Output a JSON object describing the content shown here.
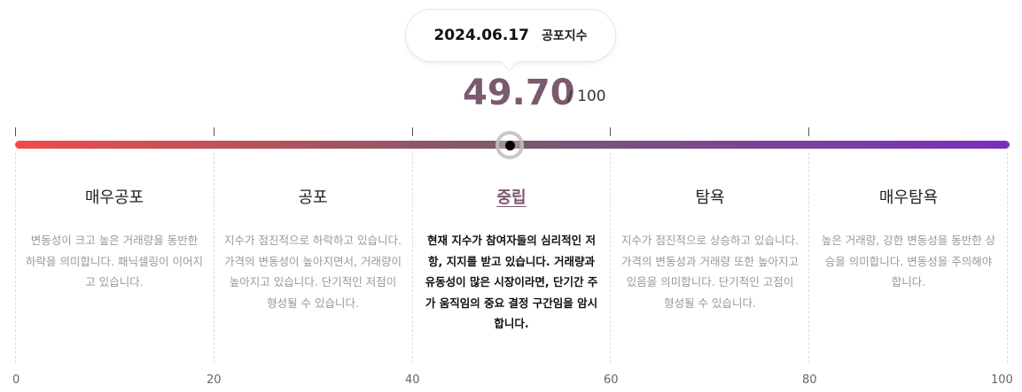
{
  "tooltip": {
    "date": "2024.06.17",
    "label": "공포지수"
  },
  "index": {
    "value": "49.70",
    "max": "/ 100",
    "fraction": 0.497
  },
  "colors": {
    "start": "#f04b4b",
    "mid": "#7a5a6e",
    "end": "#7b2fbe"
  },
  "zones": [
    {
      "title": "매우공포",
      "desc": "변동성이 크고 높은 거래량을 동반한 하락을 의미합니다. 패닉셀링이 이어지고 있습니다."
    },
    {
      "title": "공포",
      "desc": "지수가 점진적으로 하락하고 있습니다. 가격의 변동성이 높아지면서, 거래량이 높아지고 있습니다. 단기적인 저점이 형성될 수 있습니다."
    },
    {
      "title": "중립",
      "desc": "현재 지수가 참여자들의 심리적인 저항, 지지를 받고 있습니다. 거래량과 유동성이 많은 시장이라면, 단기간 주가 움직임의 중요 결정 구간임을 암시합니다.",
      "active": true
    },
    {
      "title": "탐욕",
      "desc": "지수가 점진적으로 상승하고 있습니다. 가격의 변동성과 거래량 또한 높아지고 있음을 의미합니다. 단기적인 고점이 형성될 수 있습니다."
    },
    {
      "title": "매우탐욕",
      "desc": "높은 거래량, 강한 변동성을 동반한 상승을 의미합니다. 변동성을 주의해야 합니다."
    }
  ],
  "axis": [
    "0",
    "20",
    "40",
    "60",
    "80",
    "100"
  ]
}
